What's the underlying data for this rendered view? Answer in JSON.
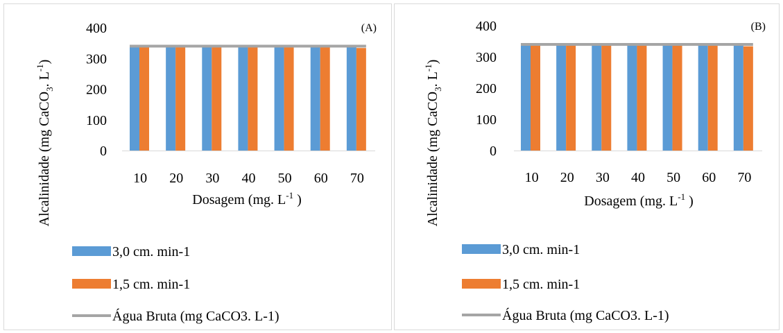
{
  "chart_data": [
    {
      "type": "bar",
      "panel_label": "(A)",
      "categories": [
        "10",
        "20",
        "30",
        "40",
        "50",
        "60",
        "70"
      ],
      "series": [
        {
          "name": "3,0 cm. min-1",
          "type": "bar",
          "color": "#5B9BD5",
          "values": [
            338,
            338,
            338,
            338,
            338,
            338,
            338
          ]
        },
        {
          "name": "1,5 cm. min-1",
          "type": "bar",
          "color": "#ED7D31",
          "values": [
            336,
            336,
            336,
            336,
            336,
            336,
            334
          ]
        },
        {
          "name": "Água Bruta (mg CaCO3. L-1)",
          "type": "line",
          "color": "#A5A5A5",
          "values": [
            340,
            340,
            340,
            340,
            340,
            340,
            340
          ]
        }
      ],
      "xlabel": "Dosagem (mg. L",
      "xlabel_sup": "-1",
      "xlabel_end": " )",
      "ylabel": "Alcalinidade (mg CaCO",
      "ylabel_sub": "3",
      "ylabel_mid": ". L",
      "ylabel_sup": "-1",
      "ylabel_end": ")",
      "yticks": [
        "0",
        "100",
        "200",
        "300",
        "400"
      ],
      "ylim": [
        0,
        400
      ],
      "legend_position": "bottom"
    },
    {
      "type": "bar",
      "panel_label": "(B)",
      "categories": [
        "10",
        "20",
        "30",
        "40",
        "50",
        "60",
        "70"
      ],
      "series": [
        {
          "name": "3,0 cm. min-1",
          "type": "bar",
          "color": "#5B9BD5",
          "values": [
            338,
            338,
            338,
            338,
            338,
            338,
            338
          ]
        },
        {
          "name": "1,5 cm. min-1",
          "type": "bar",
          "color": "#ED7D31",
          "values": [
            336,
            336,
            336,
            336,
            336,
            336,
            334
          ]
        },
        {
          "name": "Água Bruta (mg CaCO3. L-1)",
          "type": "line",
          "color": "#A5A5A5",
          "values": [
            340,
            340,
            340,
            340,
            340,
            340,
            340
          ]
        }
      ],
      "xlabel": "Dosagem (mg. L",
      "xlabel_sup": "-1",
      "xlabel_end": " )",
      "ylabel": "Alcalinidade (mg CaCO",
      "ylabel_sub": "3",
      "ylabel_mid": ". L",
      "ylabel_sup": "-1",
      "ylabel_end": ")",
      "yticks": [
        "0",
        "100",
        "200",
        "300",
        "400"
      ],
      "ylim": [
        0,
        400
      ],
      "legend_position": "bottom"
    }
  ]
}
